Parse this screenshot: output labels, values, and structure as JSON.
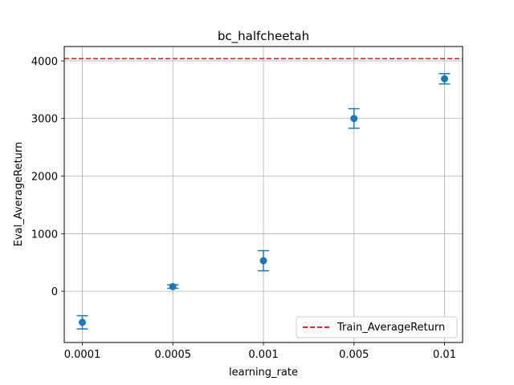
{
  "chart_data": {
    "type": "scatter",
    "title": "bc_halfcheetah",
    "xlabel": "learning_rate",
    "ylabel": "Eval_AverageReturn",
    "categories": [
      "0.0001",
      "0.0005",
      "0.001",
      "0.005",
      "0.01"
    ],
    "series": [
      {
        "values": [
          -540,
          80,
          530,
          3000,
          3690
        ],
        "errors": [
          115,
          30,
          175,
          170,
          90
        ],
        "color": "#1f77b4"
      }
    ],
    "reference_line": {
      "name": "Train_AverageReturn",
      "value": 4040,
      "color": "#d62728",
      "style": "dashed"
    },
    "ylim": [
      -890,
      4250
    ],
    "yticks": [
      0,
      1000,
      2000,
      3000,
      4000
    ],
    "grid": true,
    "legend_position": "lower-right"
  }
}
